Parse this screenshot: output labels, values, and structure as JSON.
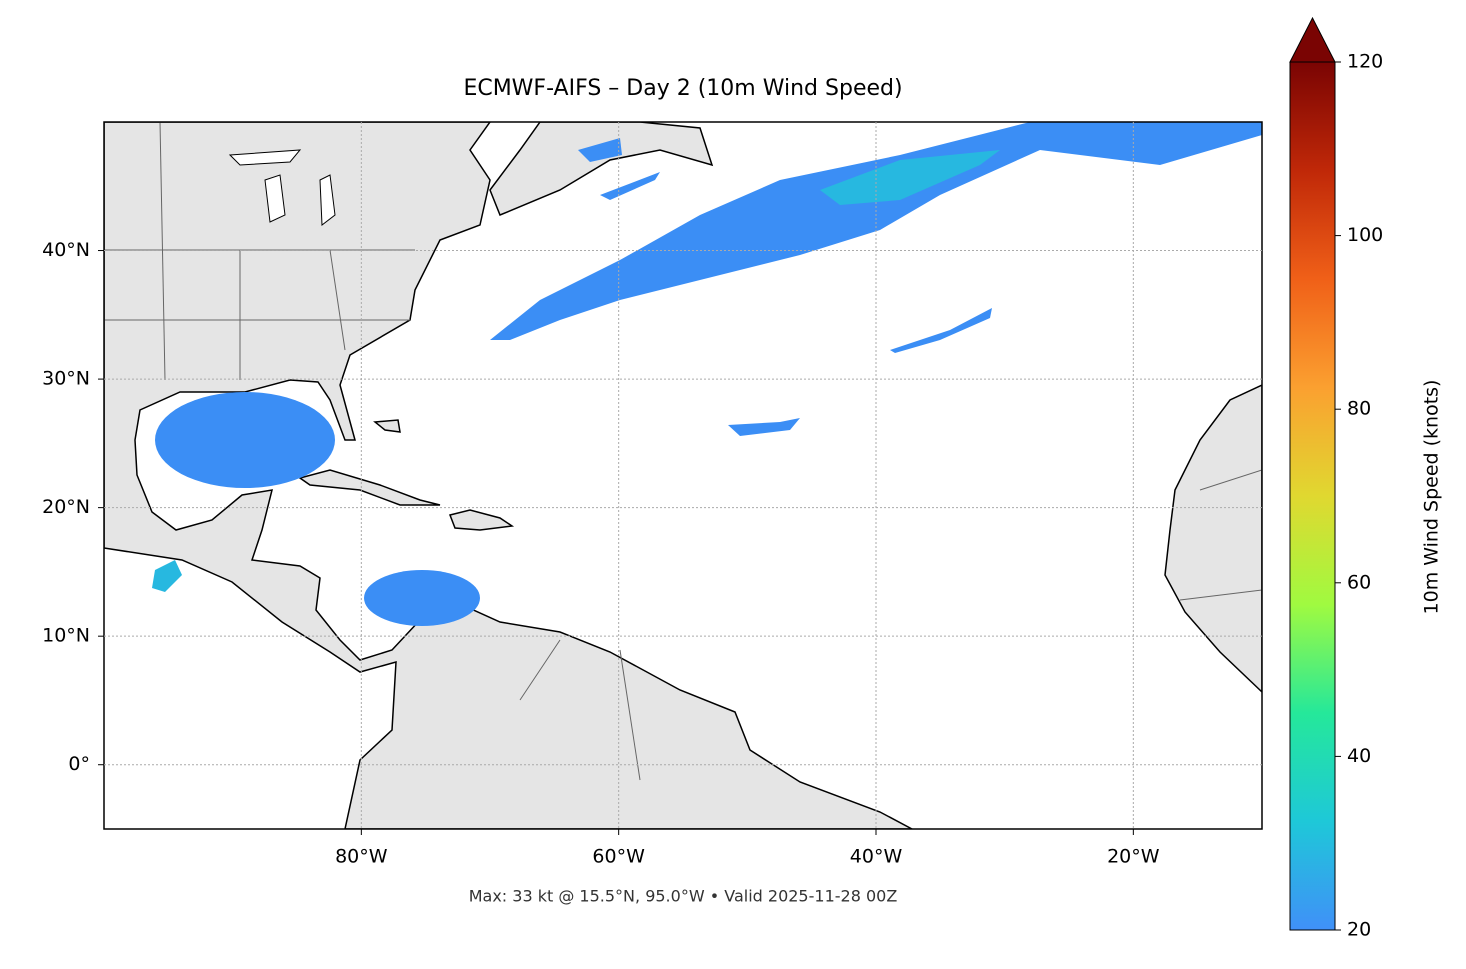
{
  "chart_data": {
    "type": "map",
    "title": "ECMWF-AIFS – Day 2 (10m Wind Speed)",
    "footnote": "Max: 33 kt @ 15.5°N, 95.0°W • Valid 2025-11-28 00Z",
    "xlim": [
      -100,
      -10
    ],
    "ylim": [
      -5,
      50
    ],
    "xticks": [
      {
        "value": -80,
        "label": "80°W"
      },
      {
        "value": -60,
        "label": "60°W"
      },
      {
        "value": -40,
        "label": "40°W"
      },
      {
        "value": -20,
        "label": "20°W"
      }
    ],
    "yticks": [
      {
        "value": 0,
        "label": "0°"
      },
      {
        "value": 10,
        "label": "10°N"
      },
      {
        "value": 20,
        "label": "20°N"
      },
      {
        "value": 30,
        "label": "30°N"
      },
      {
        "value": 40,
        "label": "40°N"
      }
    ],
    "grid": true,
    "colorbar": {
      "label": "10m Wind Speed (knots)",
      "lim": [
        20,
        120
      ],
      "ticks": [
        20,
        40,
        60,
        80,
        100,
        120
      ],
      "extend": "max",
      "colormap": [
        "#4090f8",
        "#1ec8d8",
        "#25e89a",
        "#a0fa40",
        "#e0d830",
        "#fba030",
        "#f06018",
        "#c02808",
        "#7a0403"
      ]
    }
  }
}
